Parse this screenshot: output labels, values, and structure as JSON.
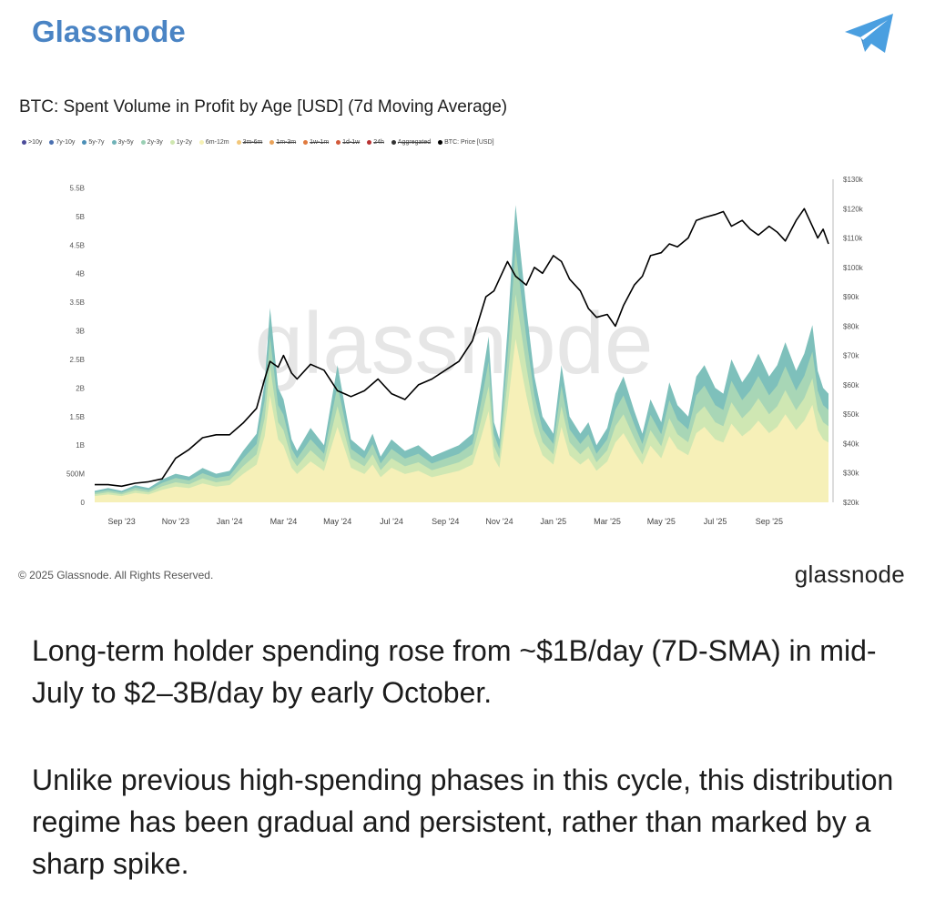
{
  "header": {
    "channel_name": "Glassnode",
    "telegram_icon": "telegram-paper-plane-icon"
  },
  "chart_data": {
    "type": "area",
    "title": "BTC: Spent Volume in Profit by Age [USD] (7d Moving Average)",
    "legend": [
      {
        "label": ">10y",
        "color": "#4b4b9a",
        "struck": false
      },
      {
        "label": "7y-10y",
        "color": "#4a6fb0",
        "struck": false
      },
      {
        "label": "5y-7y",
        "color": "#4b8fb7",
        "struck": false
      },
      {
        "label": "3y-5y",
        "color": "#6fb2b8",
        "struck": false
      },
      {
        "label": "2y-3y",
        "color": "#9acfb4",
        "struck": false
      },
      {
        "label": "1y-2y",
        "color": "#cfe7b0",
        "struck": false
      },
      {
        "label": "6m-12m",
        "color": "#f6f1b5",
        "struck": false
      },
      {
        "label": "3m-6m",
        "color": "#f2c77a",
        "struck": true
      },
      {
        "label": "1m-3m",
        "color": "#eaa35a",
        "struck": true
      },
      {
        "label": "1w-1m",
        "color": "#e07a3e",
        "struck": true
      },
      {
        "label": "1d-1w",
        "color": "#d25a3a",
        "struck": true
      },
      {
        "label": "24h",
        "color": "#b83232",
        "struck": true
      },
      {
        "label": "Aggregated",
        "color": "#333333",
        "struck": true
      },
      {
        "label": "BTC: Price [USD]",
        "color": "#000000",
        "struck": false
      }
    ],
    "x_tick_labels": [
      "Sep '23",
      "Nov '23",
      "Jan '24",
      "Mar '24",
      "May '24",
      "Jul '24",
      "Sep '24",
      "Nov '24",
      "Jan '25",
      "Mar '25",
      "May '25",
      "Jul '25",
      "Sep '25"
    ],
    "x_ticks_months": [
      1,
      3,
      5,
      7,
      9,
      11,
      13,
      15,
      17,
      19,
      21,
      23,
      25
    ],
    "xlim_months": [
      0,
      27.3
    ],
    "y_left_tick_labels": [
      "0",
      "500M",
      "1B",
      "1.5B",
      "2B",
      "2.5B",
      "3B",
      "3.5B",
      "4B",
      "4.5B",
      "5B",
      "5.5B"
    ],
    "y_left_ticks": [
      0,
      0.5,
      1,
      1.5,
      2,
      2.5,
      3,
      3.5,
      4,
      4.5,
      5,
      5.5
    ],
    "y_left_lim": [
      0,
      5.65
    ],
    "y_right_tick_labels": [
      "$20k",
      "$30k",
      "$40k",
      "$50k",
      "$60k",
      "$70k",
      "$80k",
      "$90k",
      "$100k",
      "$110k",
      "$120k",
      "$130k"
    ],
    "y_right_ticks": [
      20,
      30,
      40,
      50,
      60,
      70,
      80,
      90,
      100,
      110,
      120,
      130
    ],
    "y_right_lim": [
      20,
      130
    ],
    "watermark": "glassnode",
    "series": [
      {
        "name": "BTC: Price [USD]",
        "unit": "USD thousands",
        "color": "#000000",
        "x": [
          0,
          0.5,
          1,
          1.5,
          2,
          2.5,
          3,
          3.5,
          4,
          4.5,
          5,
          5.5,
          6,
          6.3,
          6.5,
          6.8,
          7,
          7.3,
          7.5,
          8,
          8.5,
          9,
          9.5,
          10,
          10.5,
          11,
          11.5,
          12,
          12.5,
          13,
          13.5,
          14,
          14.5,
          14.8,
          15,
          15.3,
          15.6,
          16,
          16.3,
          16.6,
          17,
          17.3,
          17.6,
          18,
          18.3,
          18.6,
          19,
          19.3,
          19.6,
          20,
          20.3,
          20.6,
          21,
          21.3,
          21.6,
          22,
          22.3,
          22.6,
          23,
          23.3,
          23.6,
          24,
          24.3,
          24.6,
          25,
          25.3,
          25.6,
          26,
          26.3,
          26.6,
          26.8,
          27,
          27.2
        ],
        "values": [
          26,
          26,
          25.5,
          26.5,
          27,
          28,
          35,
          38,
          42,
          43,
          43,
          47,
          52,
          62,
          68,
          66,
          70,
          64,
          62,
          67,
          65,
          58,
          56,
          58,
          62,
          57,
          55,
          60,
          62,
          65,
          68,
          75,
          90,
          92,
          96,
          102,
          97,
          94,
          100,
          98,
          104,
          102,
          96,
          92,
          86,
          83,
          84,
          80,
          87,
          94,
          97,
          104,
          105,
          108,
          107,
          110,
          116,
          117,
          118,
          119,
          114,
          116,
          113,
          111,
          114,
          112,
          109,
          116,
          120,
          114,
          110,
          113,
          108
        ]
      },
      {
        "name": "Spent Volume in Profit (stacked total)",
        "unit": "USD billions",
        "color": "#7fc2b5",
        "x": [
          0,
          0.5,
          1,
          1.5,
          2,
          2.5,
          3,
          3.5,
          4,
          4.5,
          5,
          5.5,
          6,
          6.3,
          6.5,
          6.8,
          7,
          7.3,
          7.5,
          8,
          8.5,
          9,
          9.5,
          10,
          10.3,
          10.6,
          11,
          11.5,
          12,
          12.5,
          13,
          13.5,
          14,
          14.3,
          14.6,
          14.8,
          15,
          15.3,
          15.6,
          16,
          16.3,
          16.6,
          17,
          17.3,
          17.6,
          18,
          18.3,
          18.6,
          19,
          19.3,
          19.6,
          20,
          20.3,
          20.6,
          21,
          21.3,
          21.6,
          22,
          22.3,
          22.6,
          23,
          23.3,
          23.6,
          24,
          24.3,
          24.6,
          25,
          25.3,
          25.6,
          26,
          26.3,
          26.6,
          26.8,
          27,
          27.2
        ],
        "values": [
          0.2,
          0.25,
          0.2,
          0.3,
          0.25,
          0.4,
          0.5,
          0.45,
          0.6,
          0.5,
          0.55,
          0.9,
          1.2,
          2.1,
          3.4,
          2.0,
          1.8,
          1.1,
          0.9,
          1.3,
          1.0,
          2.4,
          1.1,
          0.9,
          1.2,
          0.8,
          1.1,
          0.9,
          1.0,
          0.8,
          0.9,
          1.0,
          1.2,
          2.0,
          2.9,
          1.4,
          1.1,
          3.0,
          5.2,
          3.4,
          2.2,
          1.5,
          1.2,
          2.4,
          1.5,
          1.2,
          1.4,
          1.0,
          1.3,
          1.9,
          2.2,
          1.6,
          1.2,
          1.8,
          1.4,
          2.1,
          1.7,
          1.5,
          2.2,
          2.4,
          2.0,
          1.9,
          2.5,
          2.1,
          2.3,
          2.6,
          2.2,
          2.4,
          2.8,
          2.3,
          2.6,
          3.1,
          2.3,
          2.0,
          1.9
        ]
      }
    ]
  },
  "footer": {
    "copyright": "© 2025 Glassnode. All Rights Reserved.",
    "logo": "glassnode"
  },
  "post": {
    "paragraph_1": "Long-term holder spending rose from ~$1B/day (7D-SMA) in mid-July to $2–3B/day by early October.",
    "paragraph_2": "Unlike previous high-spending phases in this cycle, this distribution regime has been gradual and persistent, rather than marked by a sharp spike."
  }
}
